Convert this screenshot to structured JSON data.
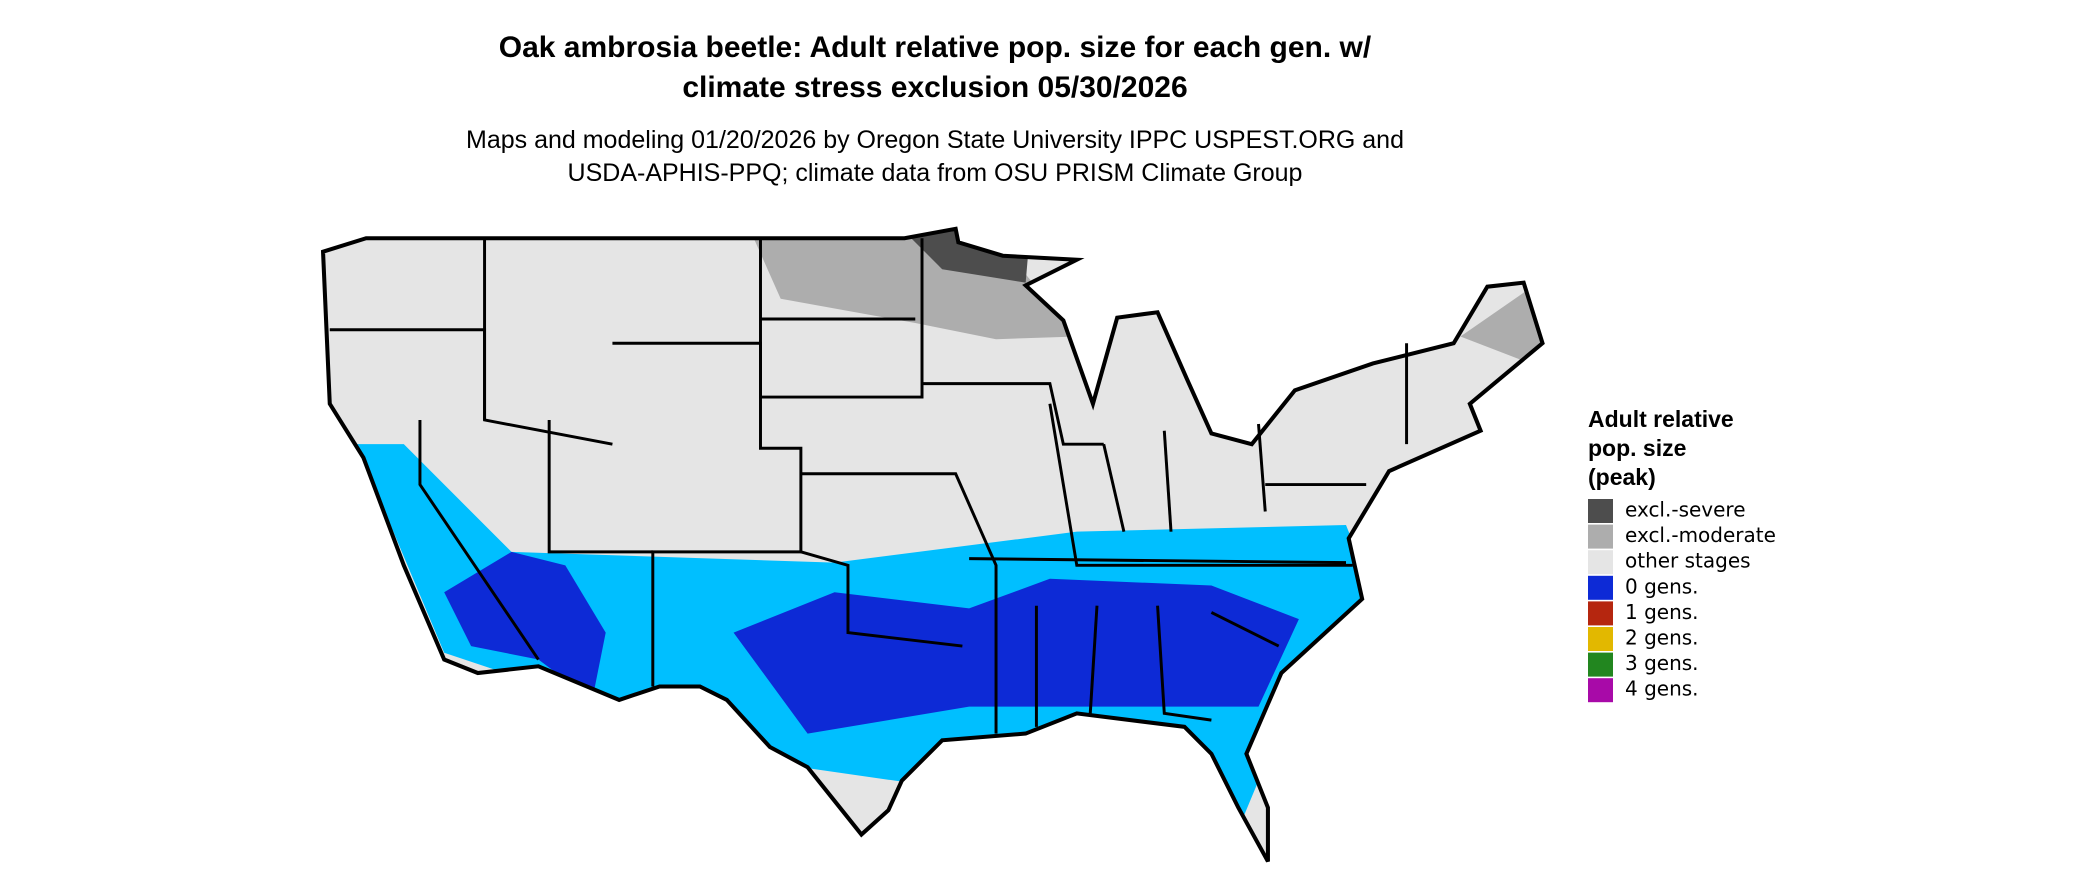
{
  "title": [
    "Oak ambrosia beetle: Adult relative pop. size for each gen. w/",
    "climate stress exclusion 05/30/2026"
  ],
  "subtitle": [
    "Maps and modeling 01/20/2026 by Oregon State University IPPC USPEST.ORG and",
    "USDA-APHIS-PPQ; climate data from OSU PRISM Climate Group"
  ],
  "legend": {
    "title": [
      "Adult relative",
      "pop. size",
      "(peak)"
    ],
    "items": [
      {
        "label": "excl.-severe",
        "color": "#4d4d4d"
      },
      {
        "label": "excl.-moderate",
        "color": "#adadad"
      },
      {
        "label": "other stages",
        "color": "#e5e5e5"
      },
      {
        "label": "0 gens.",
        "color": "#0d2ad6"
      },
      {
        "label": "1 gens.",
        "color": "#b5260f"
      },
      {
        "label": "2 gens.",
        "color": "#e2b800"
      },
      {
        "label": "3 gens.",
        "color": "#22861f"
      },
      {
        "label": "4 gens.",
        "color": "#a80aa8"
      }
    ]
  }
}
